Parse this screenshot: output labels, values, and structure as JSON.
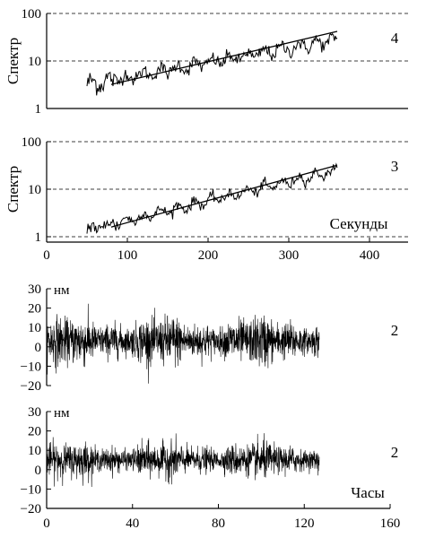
{
  "colors": {
    "foreground": "#000000",
    "background": "#ffffff"
  },
  "chart_data": [
    {
      "type": "line",
      "id": "spectrum-4",
      "ylabel": "Спектр",
      "xlabel": "",
      "panel_label": "4",
      "yscale": "log",
      "ylim": [
        1,
        100
      ],
      "xlim": [
        0,
        420
      ],
      "y_ticks": [
        "1",
        "10",
        "100"
      ],
      "x_ticks": [],
      "grid": "dashed horizontal at decades",
      "series": [
        {
          "style": "noisy",
          "x_start": 50,
          "x_end": 360,
          "y_start": 3.2,
          "y_end": 28,
          "noise": 0.12
        },
        {
          "style": "fit",
          "x": [
            80,
            360
          ],
          "y": [
            3.2,
            42
          ]
        }
      ]
    },
    {
      "type": "line",
      "id": "spectrum-3",
      "ylabel": "Спектр",
      "xlabel": "Секунды",
      "panel_label": "3",
      "yscale": "log",
      "ylim": [
        1,
        100
      ],
      "xlim": [
        0,
        420
      ],
      "y_ticks": [
        "1",
        "10",
        "100"
      ],
      "x_ticks": [
        "0",
        "100",
        "200",
        "300",
        "400"
      ],
      "grid": "dashed horizontal at decades",
      "series": [
        {
          "style": "noisy",
          "x_start": 50,
          "x_end": 360,
          "y_start": 1.4,
          "y_end": 25,
          "noise": 0.09
        },
        {
          "style": "fit",
          "x": [
            80,
            360
          ],
          "y": [
            1.6,
            32
          ]
        }
      ]
    },
    {
      "type": "line",
      "id": "timeseries-2a",
      "unit_label": "нм",
      "xlabel": "",
      "panel_label": "2",
      "ylim": [
        -20,
        30
      ],
      "xlim": [
        0,
        160
      ],
      "y_ticks": [
        "30",
        "20",
        "10",
        "0",
        "−10",
        "−20"
      ],
      "x_ticks": [],
      "series": [
        {
          "style": "dense-noise",
          "x_start": 0,
          "x_end": 127,
          "center": 3,
          "amplitude": 11
        }
      ]
    },
    {
      "type": "line",
      "id": "timeseries-2b",
      "unit_label": "нм",
      "xlabel": "Часы",
      "panel_label": "2",
      "ylim": [
        -20,
        30
      ],
      "xlim": [
        0,
        160
      ],
      "y_ticks": [
        "30",
        "20",
        "10",
        "0",
        "−10",
        "−20"
      ],
      "x_ticks": [
        "0",
        "40",
        "80",
        "120",
        "160"
      ],
      "series": [
        {
          "style": "dense-noise",
          "x_start": 0,
          "x_end": 127,
          "center": 5,
          "amplitude": 8
        }
      ]
    }
  ]
}
